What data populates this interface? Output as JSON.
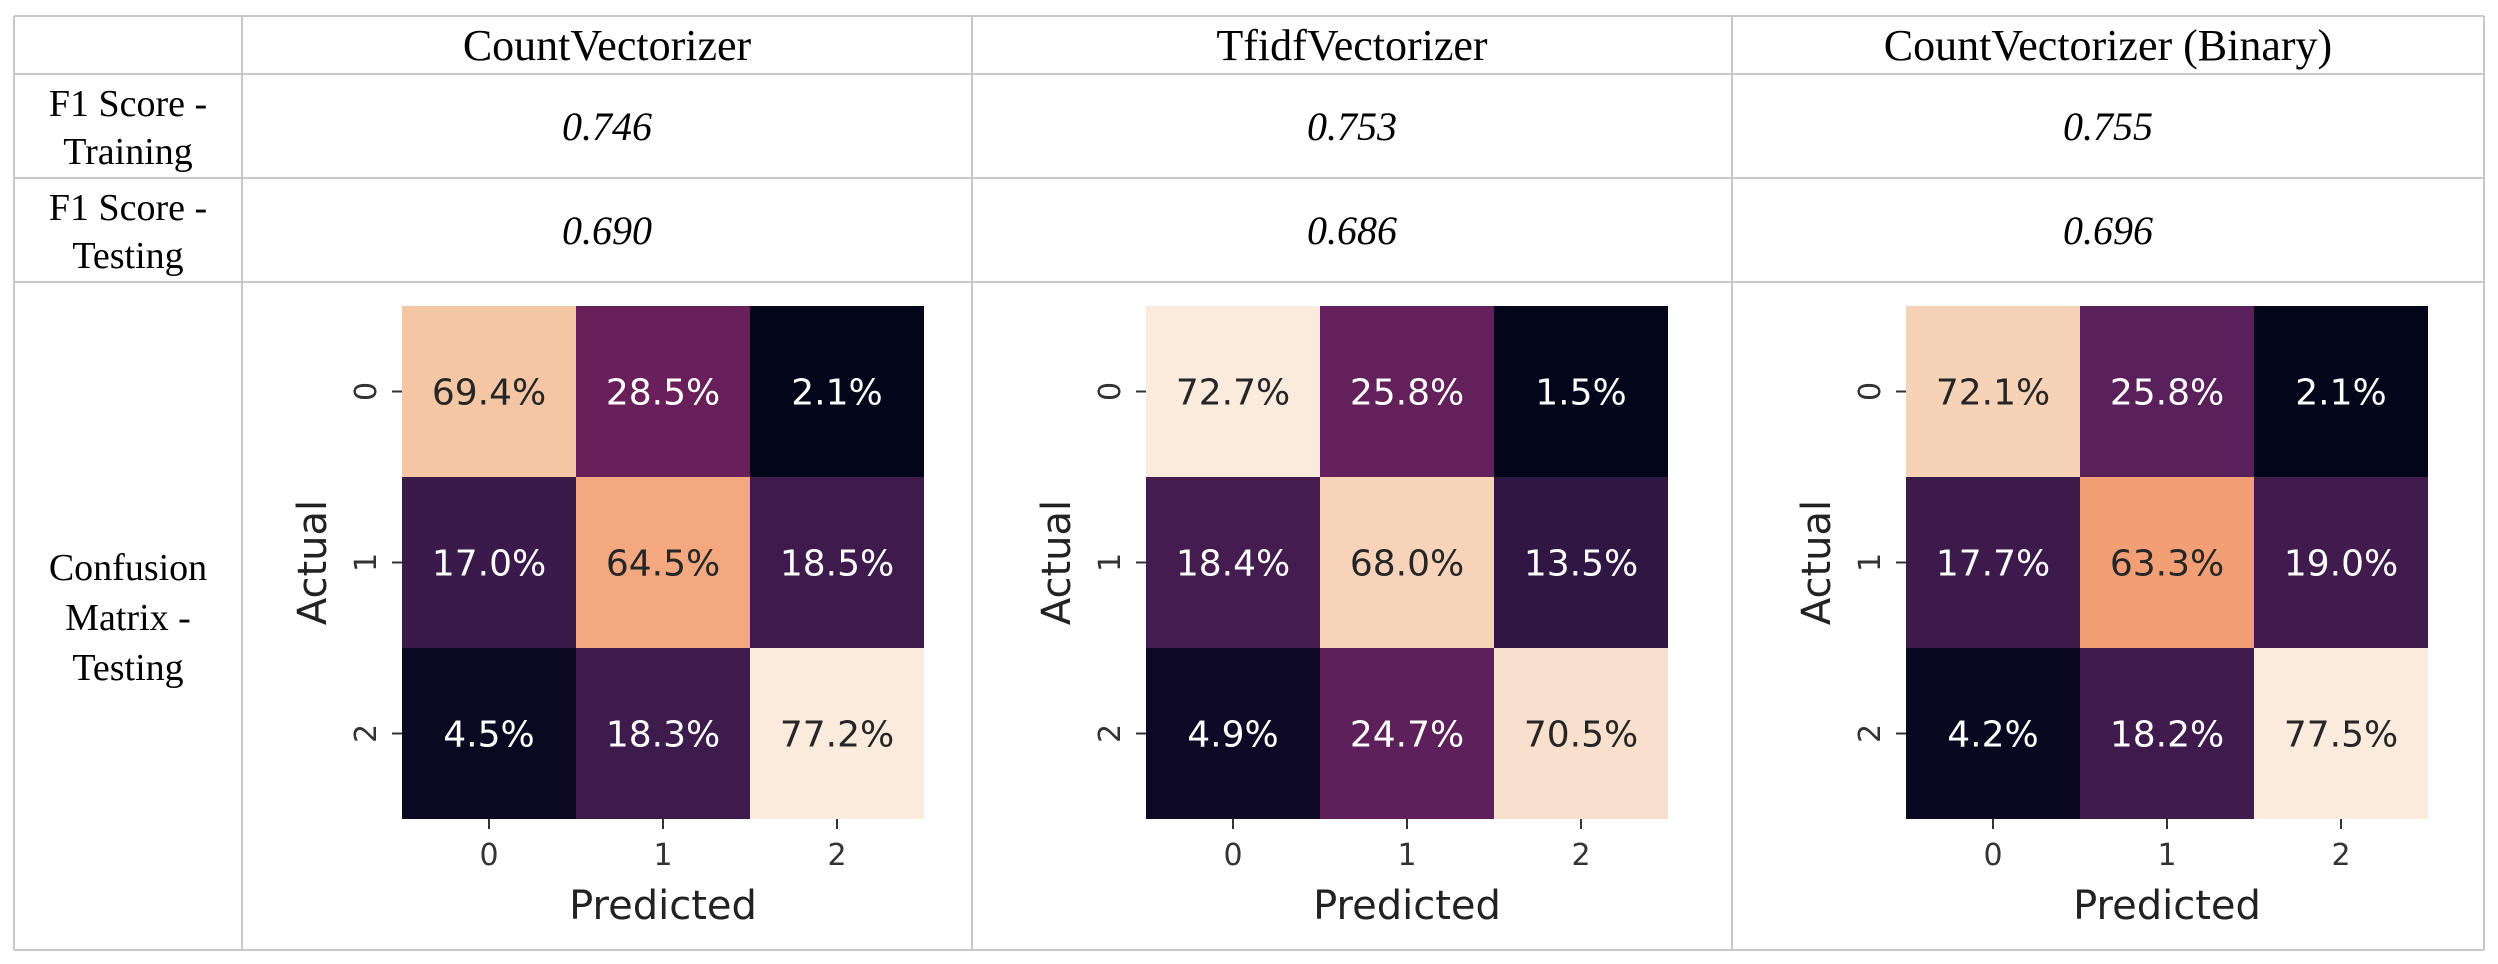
{
  "table": {
    "columns": [
      "CountVectorizer",
      "TfidfVectorizer",
      "CountVectorizer (Binary)"
    ],
    "rows": [
      {
        "label_lines": [
          "F1 Score -",
          "Training"
        ],
        "values": [
          "0.746",
          "0.753",
          "0.755"
        ]
      },
      {
        "label_lines": [
          "F1 Score -",
          "Testing"
        ],
        "values": [
          "0.690",
          "0.686",
          "0.696"
        ]
      }
    ],
    "matrix_row_label_lines": [
      "Confusion",
      "Matrix -",
      "Testing"
    ]
  },
  "chart_data": [
    {
      "type": "heatmap",
      "title": "CountVectorizer",
      "xlabel": "Predicted",
      "ylabel": "Actual",
      "x_ticks": [
        "0",
        "1",
        "2"
      ],
      "y_ticks": [
        "0",
        "1",
        "2"
      ],
      "values": [
        [
          69.4,
          28.5,
          2.1
        ],
        [
          17.0,
          64.5,
          18.5
        ],
        [
          4.5,
          18.3,
          77.2
        ]
      ],
      "labels": [
        [
          "69.4%",
          "28.5%",
          "2.1%"
        ],
        [
          "17.0%",
          "64.5%",
          "18.5%"
        ],
        [
          "4.5%",
          "18.3%",
          "77.2%"
        ]
      ]
    },
    {
      "type": "heatmap",
      "title": "TfidfVectorizer",
      "xlabel": "Predicted",
      "ylabel": "Actual",
      "x_ticks": [
        "0",
        "1",
        "2"
      ],
      "y_ticks": [
        "0",
        "1",
        "2"
      ],
      "values": [
        [
          72.7,
          25.8,
          1.5
        ],
        [
          18.4,
          68.0,
          13.5
        ],
        [
          4.9,
          24.7,
          70.5
        ]
      ],
      "labels": [
        [
          "72.7%",
          "25.8%",
          "1.5%"
        ],
        [
          "18.4%",
          "68.0%",
          "13.5%"
        ],
        [
          "4.9%",
          "24.7%",
          "70.5%"
        ]
      ]
    },
    {
      "type": "heatmap",
      "title": "CountVectorizer (Binary)",
      "xlabel": "Predicted",
      "ylabel": "Actual",
      "x_ticks": [
        "0",
        "1",
        "2"
      ],
      "y_ticks": [
        "0",
        "1",
        "2"
      ],
      "values": [
        [
          72.1,
          25.8,
          2.1
        ],
        [
          17.7,
          63.3,
          19.0
        ],
        [
          4.2,
          18.2,
          77.5
        ]
      ],
      "labels": [
        [
          "72.1%",
          "25.8%",
          "2.1%"
        ],
        [
          "17.7%",
          "63.3%",
          "19.0%"
        ],
        [
          "4.2%",
          "18.2%",
          "77.5%"
        ]
      ]
    }
  ]
}
